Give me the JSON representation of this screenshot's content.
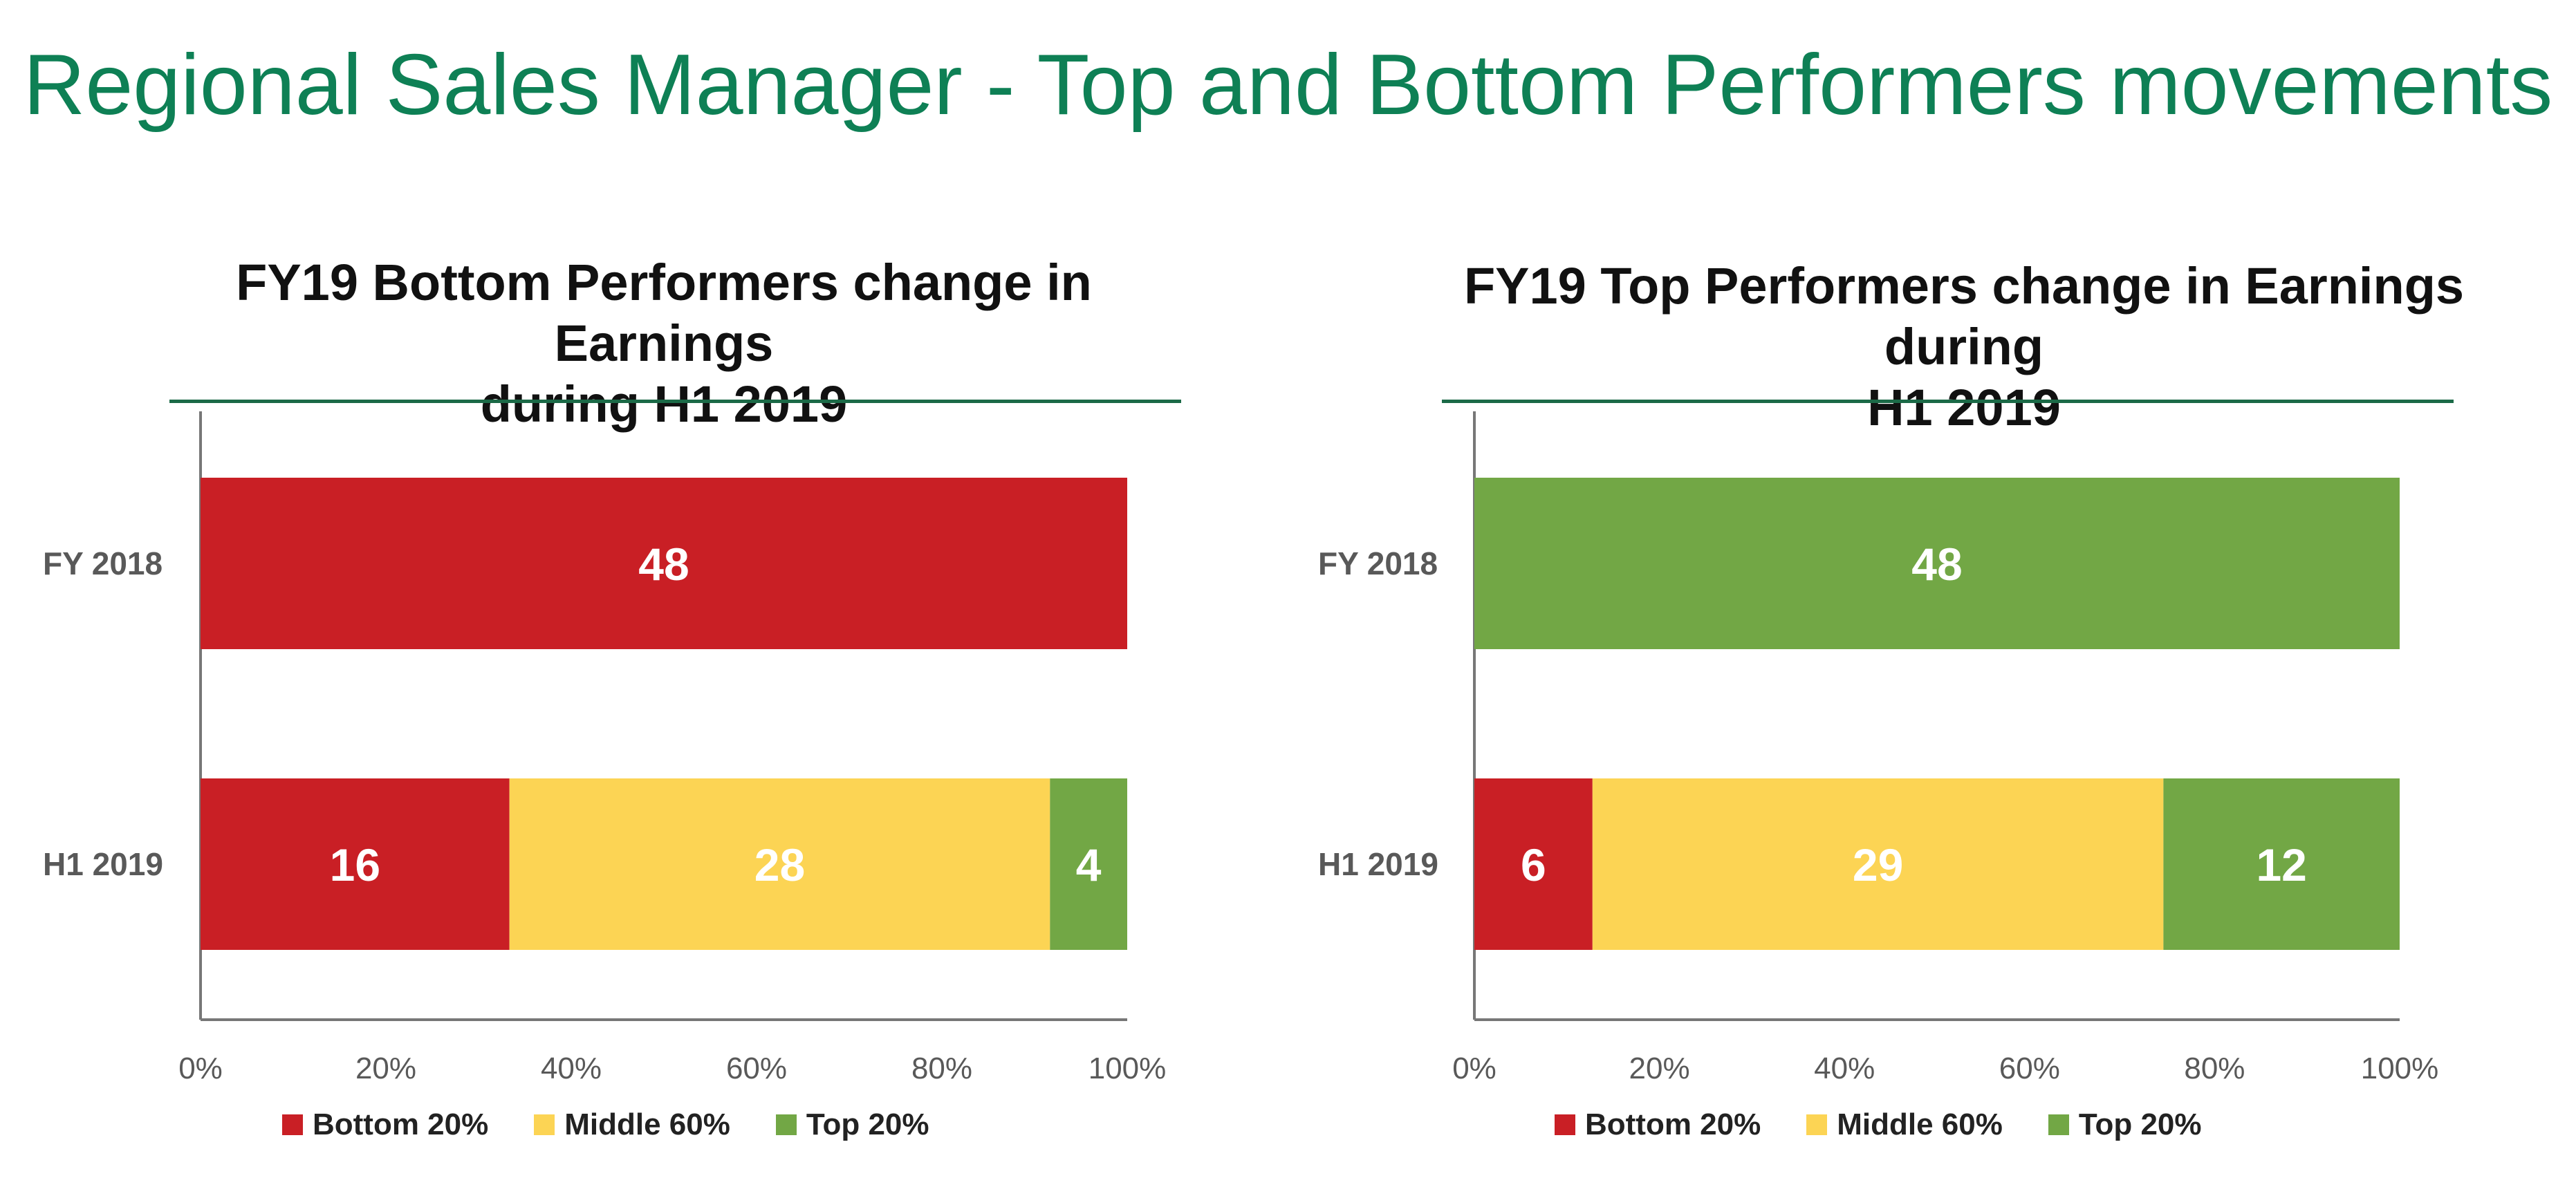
{
  "page_title": "Regional Sales Manager - Top and Bottom Performers movements",
  "colors": {
    "bottom": "#c91f25",
    "middle": "#fcd454",
    "top": "#72a745",
    "title": "#0e8055"
  },
  "legend": [
    {
      "label": "Bottom 20%",
      "color": "#c91f25"
    },
    {
      "label": "Middle 60%",
      "color": "#fcd454"
    },
    {
      "label": "Top 20%",
      "color": "#72a745"
    }
  ],
  "chart_data": [
    {
      "type": "bar",
      "orientation": "horizontal",
      "stacked": "percent",
      "title_line1": "FY19 Bottom Performers change in Earnings",
      "title_line2": "during H1 2019",
      "categories": [
        "FY 2018",
        "H1 2019"
      ],
      "series": [
        {
          "name": "Bottom 20%",
          "values": [
            48,
            16
          ]
        },
        {
          "name": "Middle 60%",
          "values": [
            0,
            28
          ]
        },
        {
          "name": "Top 20%",
          "values": [
            0,
            4
          ]
        }
      ],
      "xticks": [
        "0%",
        "20%",
        "40%",
        "60%",
        "80%",
        "100%"
      ],
      "xlim": [
        0,
        100
      ]
    },
    {
      "type": "bar",
      "orientation": "horizontal",
      "stacked": "percent",
      "title_line1": "FY19 Top Performers change in Earnings during",
      "title_line2": "H1 2019",
      "categories": [
        "FY 2018",
        "H1 2019"
      ],
      "series": [
        {
          "name": "Bottom 20%",
          "values": [
            0,
            6
          ]
        },
        {
          "name": "Middle 60%",
          "values": [
            0,
            29
          ]
        },
        {
          "name": "Top 20%",
          "values": [
            48,
            12
          ]
        }
      ],
      "xticks": [
        "0%",
        "20%",
        "40%",
        "60%",
        "80%",
        "100%"
      ],
      "xlim": [
        0,
        100
      ]
    }
  ]
}
